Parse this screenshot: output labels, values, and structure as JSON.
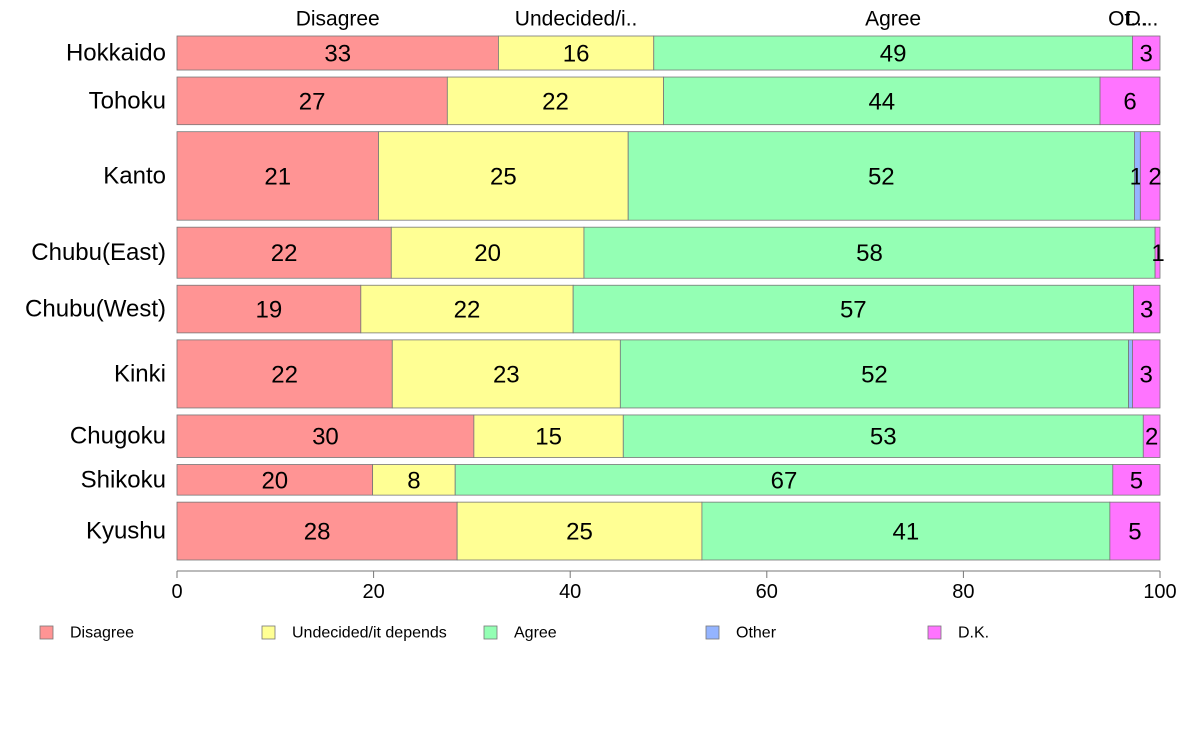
{
  "chart_data": {
    "type": "bar",
    "orientation": "horizontal",
    "stacked": true,
    "categories": [
      "Hokkaido",
      "Tohoku",
      "Kanto",
      "Chubu(East)",
      "Chubu(West)",
      "Kinki",
      "Chugoku",
      "Shikoku",
      "Kyushu"
    ],
    "relative_bar_heights": [
      1,
      1.4,
      2.6,
      1.5,
      1.4,
      2.0,
      1.25,
      0.9,
      1.7
    ],
    "series": [
      {
        "name": "Disagree",
        "color": "#ff9494",
        "values": [
          32.7,
          27.5,
          20.5,
          21.8,
          18.7,
          21.9,
          30.2,
          19.9,
          28.5
        ]
      },
      {
        "name": "Undecided/it depends",
        "color": "#ffff94",
        "values": [
          15.8,
          22.0,
          25.4,
          19.6,
          21.6,
          23.2,
          15.2,
          8.4,
          24.9
        ]
      },
      {
        "name": "Agree",
        "color": "#94ffb4",
        "values": [
          48.7,
          44.4,
          51.5,
          58.1,
          57.0,
          51.7,
          52.9,
          66.9,
          41.5
        ]
      },
      {
        "name": "Other",
        "color": "#94b4ff",
        "values": [
          0.0,
          0.0,
          0.6,
          0.0,
          0.0,
          0.4,
          0.0,
          0.0,
          0.0
        ]
      },
      {
        "name": "D.K.",
        "color": "#ff74ff",
        "values": [
          2.8,
          6.1,
          2.0,
          0.5,
          2.7,
          2.8,
          1.7,
          4.8,
          5.1
        ]
      }
    ],
    "data_labels": [
      [
        "33",
        "16",
        "49",
        "",
        "3"
      ],
      [
        "27",
        "22",
        "44",
        "",
        "6"
      ],
      [
        "21",
        "25",
        "52",
        "1",
        "2"
      ],
      [
        "22",
        "20",
        "58",
        "",
        "1"
      ],
      [
        "19",
        "22",
        "57",
        "",
        "3"
      ],
      [
        "22",
        "23",
        "52",
        "",
        "3"
      ],
      [
        "30",
        "15",
        "53",
        "",
        "2"
      ],
      [
        "20",
        "8",
        "67",
        "",
        "5"
      ],
      [
        "28",
        "25",
        "41",
        "",
        "5"
      ]
    ],
    "top_labels": [
      "Disagree",
      "Undecided/i..",
      "Agree",
      "Ot...",
      "D..."
    ],
    "xlim": [
      0,
      100
    ],
    "xticks": [
      0,
      20,
      40,
      60,
      80,
      100
    ],
    "grid": false,
    "legend_position": "bottom"
  }
}
